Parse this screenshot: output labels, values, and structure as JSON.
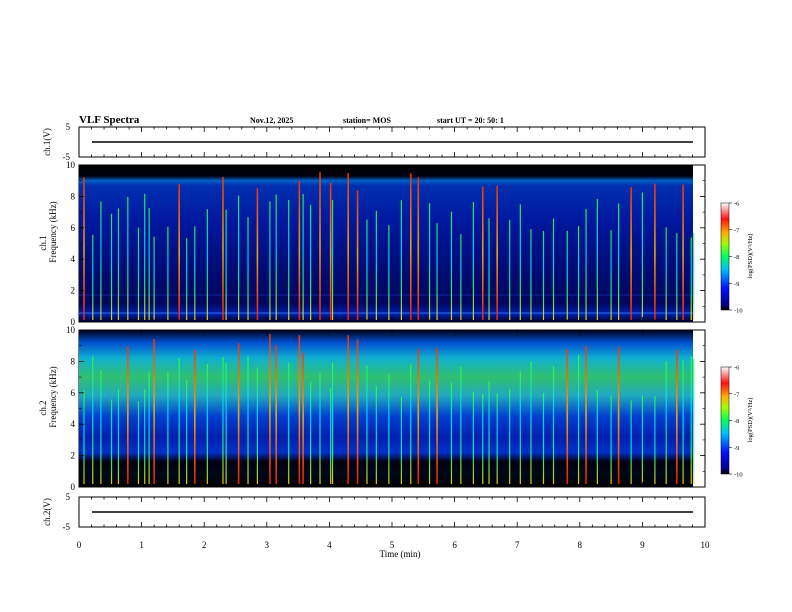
{
  "header": {
    "title": "VLF Spectra",
    "date": "Nov.12, 2025",
    "station": "station= MOS",
    "start": "start  UT  =   20: 50: 1"
  },
  "chart_data": {
    "type": "heatmap",
    "title": "VLF Spectra",
    "xlabel": "Time  (min)",
    "xlim": [
      0,
      10
    ],
    "xticks": [
      "0",
      "1",
      "2",
      "3",
      "4",
      "5",
      "6",
      "7",
      "8",
      "9",
      "10"
    ],
    "panels": [
      {
        "id": "ch1-waveform",
        "ylabel": "ch.1(V)",
        "ylim": [
          -5,
          5
        ],
        "yticks": [
          "5",
          "-5"
        ],
        "trace_level": 0
      },
      {
        "id": "ch1-spectrogram",
        "ylabel_top": "ch.1",
        "ylabel": "Frequency  (kHz)",
        "ylim": [
          0,
          10
        ],
        "yticks": [
          "0",
          "2",
          "4",
          "6",
          "8",
          "10"
        ],
        "colorbar": {
          "label": "log(PSD)(V²/Hz)",
          "range": [
            -10,
            -6
          ],
          "ticks": [
            "-6",
            "-7",
            "-8",
            "-9",
            "-10"
          ]
        }
      },
      {
        "id": "ch2-spectrogram",
        "ylabel_top": "ch.2",
        "ylabel": "Frequency  (kHz)",
        "ylim": [
          0,
          10
        ],
        "yticks": [
          "0",
          "2",
          "4",
          "6",
          "8",
          "10"
        ],
        "colorbar": {
          "label": "log(PSD)(V²/Hz)",
          "range": [
            -10,
            -6
          ],
          "ticks": [
            "-6",
            "-7",
            "-8",
            "-9",
            "-10"
          ]
        }
      },
      {
        "id": "ch2-waveform",
        "ylabel": "ch.2(V)",
        "ylim": [
          -5,
          5
        ],
        "yticks": [
          "5",
          "-5"
        ],
        "trace_level": 0
      }
    ],
    "sferic_times_min": [
      0.08,
      0.22,
      0.35,
      0.52,
      0.63,
      0.78,
      0.95,
      1.05,
      1.12,
      1.2,
      1.42,
      1.6,
      1.72,
      1.85,
      2.05,
      2.3,
      2.35,
      2.55,
      2.7,
      2.85,
      3.05,
      3.15,
      3.35,
      3.52,
      3.58,
      3.7,
      3.85,
      4.02,
      4.05,
      4.3,
      4.45,
      4.6,
      4.75,
      4.95,
      5.15,
      5.3,
      5.42,
      5.6,
      5.72,
      5.95,
      6.1,
      6.3,
      6.45,
      6.55,
      6.68,
      6.88,
      7.05,
      7.22,
      7.42,
      7.58,
      7.8,
      7.98,
      8.1,
      8.28,
      8.5,
      8.62,
      8.82,
      9.0,
      9.2,
      9.38,
      9.55,
      9.65,
      9.78,
      9.82
    ]
  }
}
